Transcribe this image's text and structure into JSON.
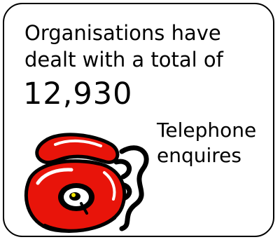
{
  "card": {
    "intro_text": "Organisations have\ndealt with a total of",
    "count": "12,930",
    "tail_text": "Telephone\nenquires"
  },
  "illustration": {
    "icon": "telephone-icon",
    "colors": {
      "body": "#e8140a",
      "outline": "#000000",
      "highlight": "#ffffff",
      "dial_center": "#f2e600"
    }
  }
}
